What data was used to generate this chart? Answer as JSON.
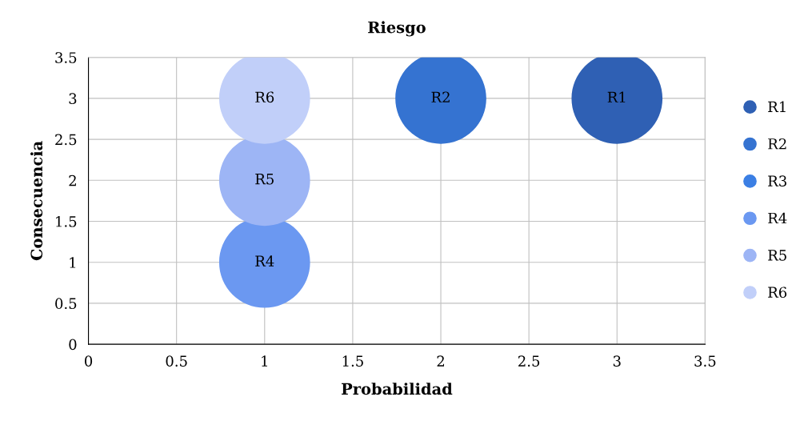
{
  "chart_data": {
    "type": "bubble",
    "title": "Riesgo",
    "xlabel": "Probabilidad",
    "ylabel": "Consecuencia",
    "series": [
      {
        "name": "R1",
        "color": "#2f60b4",
        "x": [
          3
        ],
        "values": [
          3
        ],
        "sizes": [
          1
        ]
      },
      {
        "name": "R2",
        "color": "#3573d1",
        "x": [
          2
        ],
        "values": [
          3
        ],
        "sizes": [
          1
        ]
      },
      {
        "name": "R3",
        "color": "#3b7fe4",
        "x": [
          null
        ],
        "values": [
          null
        ],
        "sizes": [
          null
        ]
      },
      {
        "name": "R4",
        "color": "#6b98f1",
        "x": [
          1
        ],
        "values": [
          1
        ],
        "sizes": [
          1
        ]
      },
      {
        "name": "R5",
        "color": "#9db5f5",
        "x": [
          1
        ],
        "values": [
          2
        ],
        "sizes": [
          1
        ]
      },
      {
        "name": "R6",
        "color": "#c1cff9",
        "x": [
          1
        ],
        "values": [
          3
        ],
        "sizes": [
          1
        ]
      }
    ],
    "xlim": [
      0,
      3.5
    ],
    "xticks": [
      0,
      0.5,
      1,
      1.5,
      2,
      2.5,
      3,
      3.5
    ],
    "ylim": [
      0,
      3.5
    ],
    "yticks": [
      0,
      0.5,
      1,
      1.5,
      2,
      2.5,
      3,
      3.5
    ],
    "grid": true,
    "legend": "right"
  }
}
